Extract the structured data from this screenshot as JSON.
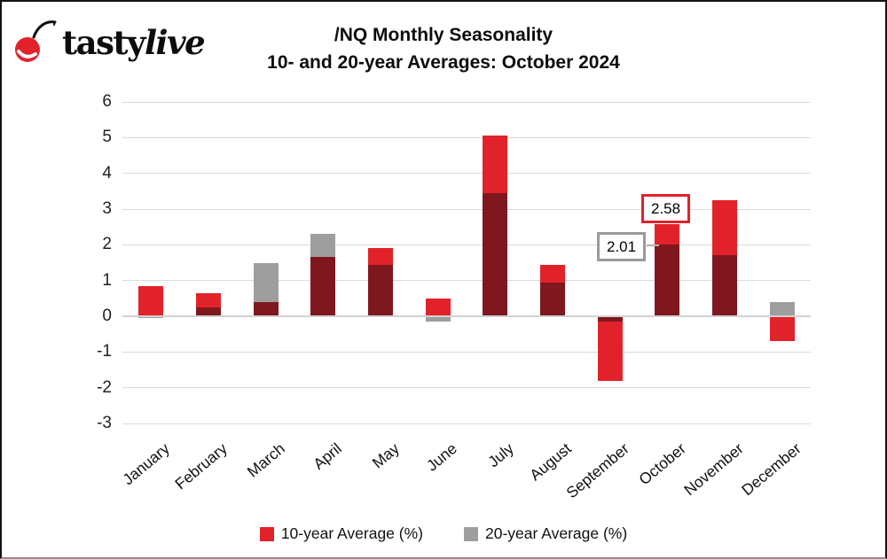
{
  "logo": {
    "tasty": "tasty",
    "live": "live"
  },
  "header": {
    "title_line1": "/NQ Monthly Seasonality",
    "title_line2": "10- and 20-year Averages: October 2024"
  },
  "colors": {
    "red": "#e2222a",
    "overlap_dark_red": "#7f181e",
    "gray": "#9e9e9e",
    "gridline": "#dadada",
    "callout_red_border": "#e2222a",
    "callout_gray_border": "#9a9a9a"
  },
  "chart_data": {
    "type": "bar",
    "subtype": "overlapped-bars",
    "title": "/NQ Monthly Seasonality",
    "subtitle": "10- and 20-year Averages: October 2024",
    "categories": [
      "January",
      "February",
      "March",
      "April",
      "May",
      "June",
      "July",
      "August",
      "September",
      "October",
      "November",
      "December"
    ],
    "series": [
      {
        "name": "10-year Average (%)",
        "color": "#e2222a",
        "values": [
          0.85,
          0.65,
          0.4,
          1.65,
          1.9,
          0.5,
          5.05,
          1.45,
          -1.8,
          2.58,
          3.25,
          -0.7
        ]
      },
      {
        "name": "20-year Average (%)",
        "color": "#9e9e9e",
        "values": [
          -0.05,
          0.25,
          1.5,
          2.3,
          1.45,
          -0.15,
          3.45,
          0.95,
          -0.15,
          2.01,
          1.7,
          0.4
        ]
      }
    ],
    "overlap_color": "#7f181e",
    "xlabel": "",
    "ylabel": "",
    "ylim": [
      -3,
      6
    ],
    "ytick_step": 1,
    "grid": true,
    "legend_position": "bottom",
    "annotations": [
      {
        "text": "2.58",
        "month": "October",
        "series": "10-year Average (%)",
        "box_border": "#e2222a"
      },
      {
        "text": "2.01",
        "month": "October",
        "series": "20-year Average (%)",
        "box_border": "#9a9a9a"
      }
    ]
  },
  "legend": {
    "items": [
      {
        "label": "10-year Average (%)",
        "color": "#e2222a"
      },
      {
        "label": "20-year Average (%)",
        "color": "#9e9e9e"
      }
    ]
  }
}
